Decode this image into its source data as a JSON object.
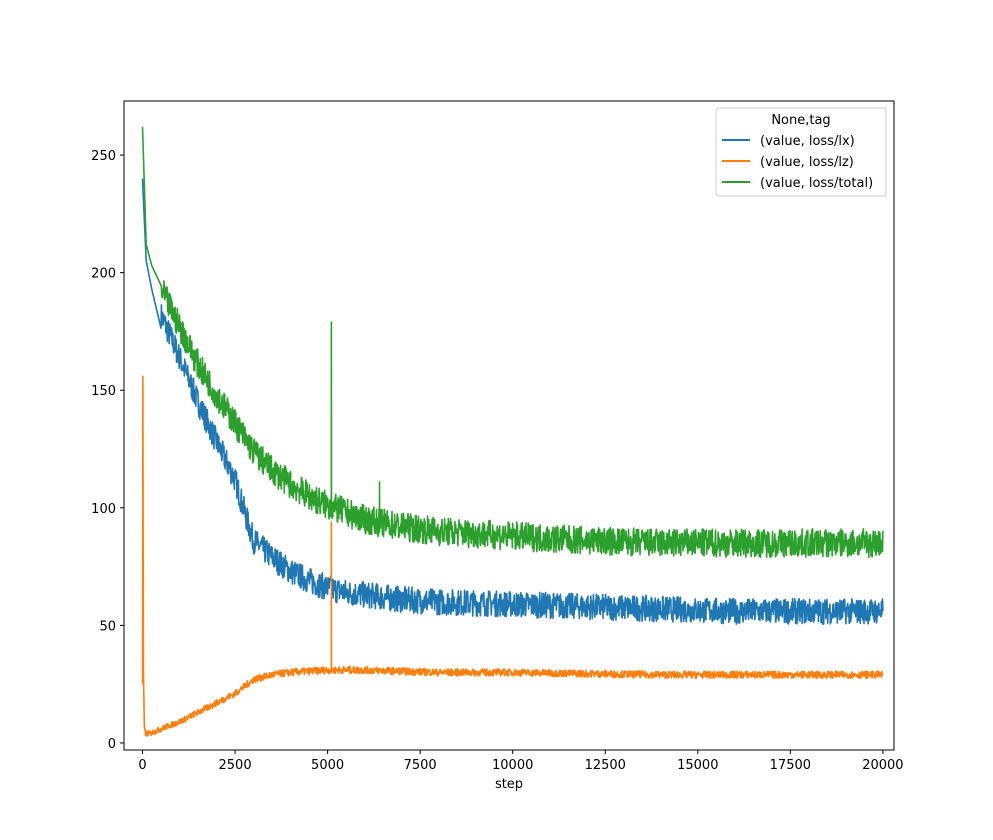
{
  "chart_data": {
    "type": "line",
    "title": "",
    "xlabel": "step",
    "ylabel": "",
    "xlim": [
      -500,
      20300
    ],
    "ylim": [
      -3,
      273
    ],
    "x_ticks": [
      0,
      2500,
      5000,
      7500,
      10000,
      12500,
      15000,
      17500,
      20000
    ],
    "x_tick_labels": [
      "0",
      "2500",
      "5000",
      "7500",
      "10000",
      "12500",
      "15000",
      "17500",
      "20000"
    ],
    "y_ticks": [
      0,
      50,
      100,
      150,
      200,
      250
    ],
    "y_tick_labels": [
      "0",
      "50",
      "100",
      "150",
      "200",
      "250"
    ],
    "grid": false,
    "legend": {
      "title": "None,tag",
      "placement": "upper right",
      "entries": [
        "(value, loss/lx)",
        "(value, loss/lz)",
        "(value, loss/total)"
      ]
    },
    "series": [
      {
        "name": "(value, loss/lx)",
        "color": "#1f77b4",
        "noise": 3.5,
        "x": [
          0,
          100,
          250,
          500,
          1000,
          1500,
          2000,
          2500,
          2800,
          3000,
          3500,
          4000,
          4500,
          5000,
          5500,
          6000,
          7000,
          8000,
          10000,
          12000,
          14000,
          16000,
          18000,
          20000
        ],
        "y": [
          240,
          205,
          193,
          182,
          164,
          145,
          128,
          112,
          96,
          86,
          79,
          73,
          69,
          66,
          64,
          63,
          61,
          60,
          59,
          58,
          57,
          56,
          56,
          56
        ]
      },
      {
        "name": "(value, loss/lz)",
        "color": "#ff7f0e",
        "noise": 1.2,
        "x": [
          0,
          10,
          25,
          50,
          80,
          200,
          500,
          1000,
          1500,
          2000,
          2500,
          3000,
          3500,
          4000,
          5000,
          6000,
          8000,
          10000,
          14000,
          20000
        ],
        "y": [
          25,
          156,
          30,
          6,
          4,
          4,
          6,
          9,
          13,
          17,
          21,
          27,
          29,
          30,
          31,
          31,
          30,
          30,
          29,
          29
        ],
        "spikes": [
          {
            "x": 5100,
            "y": 94
          }
        ]
      },
      {
        "name": "(value, loss/total)",
        "color": "#2ca02c",
        "noise": 3.8,
        "x": [
          0,
          100,
          250,
          500,
          1000,
          1500,
          2000,
          2500,
          3000,
          3500,
          4000,
          4500,
          5000,
          5500,
          6000,
          7000,
          8000,
          10000,
          12000,
          14000,
          16000,
          18000,
          20000
        ],
        "y": [
          262,
          212,
          203,
          193,
          177,
          161,
          148,
          136,
          124,
          116,
          110,
          105,
          101,
          98,
          95,
          92,
          90,
          88,
          86,
          85,
          85,
          85,
          85
        ],
        "spikes": [
          {
            "x": 5100,
            "y": 179
          },
          {
            "x": 6400,
            "y": 111
          }
        ]
      }
    ]
  }
}
